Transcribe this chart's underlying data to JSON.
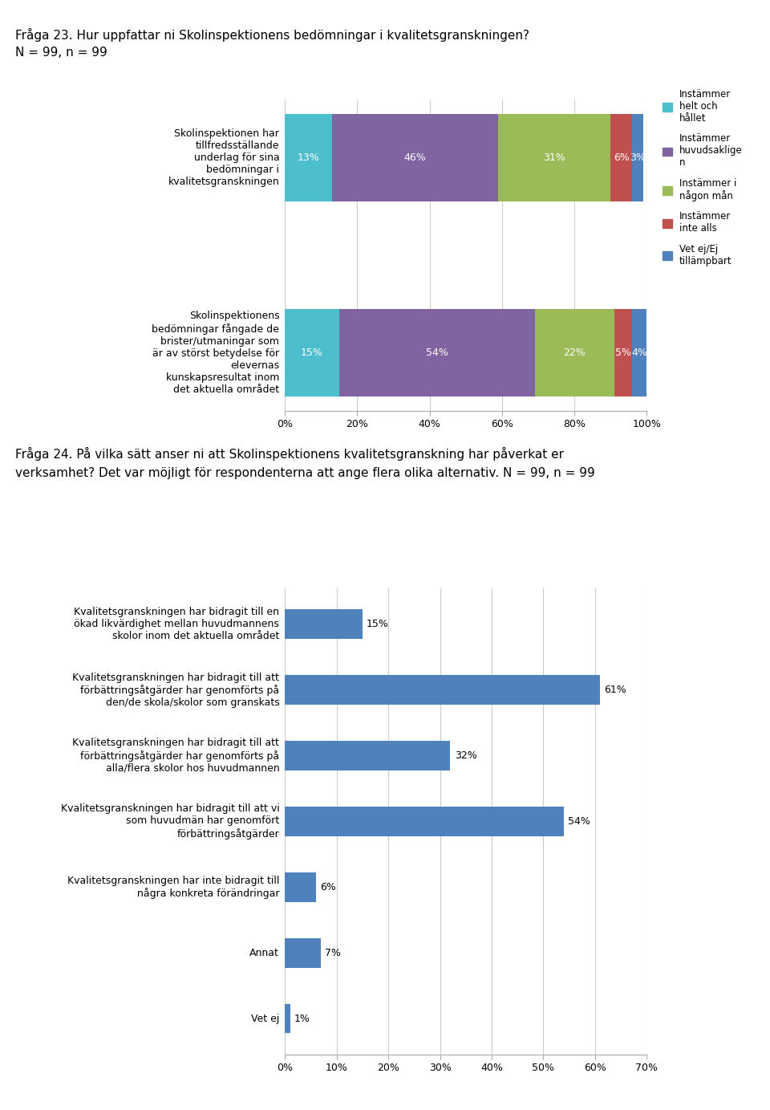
{
  "fig_width": 9.6,
  "fig_height": 13.83,
  "background_color": "#ffffff",
  "q23_title": "Fråga 23. Hur uppfattar ni Skolinspektionens bedömningar i kvalitetsgranskningen?",
  "q23_subtitle": "N = 99, n = 99",
  "q23_categories": [
    "Skolinspektionen har\ntillfredsställande\nunderlag för sina\nbedömningar i\nkvalitetsgranskningen",
    "Skolinspektionens\nbedömningar fångade de\nbrister/utmaningar som\när av störst betydelse för\nelevernas\nkunskapsresultat inom\ndet aktuella området"
  ],
  "q23_data": [
    [
      13,
      46,
      31,
      6,
      3
    ],
    [
      15,
      54,
      22,
      5,
      4
    ]
  ],
  "q23_colors": [
    "#4DBECC",
    "#8064A2",
    "#9BBB59",
    "#C0504D",
    "#4F81BD"
  ],
  "q23_legend_labels": [
    "Instämmer\nhelt och\nhållet",
    "Instämmer\nhuvudsaklige\nn",
    "Instämmer i\nnågon mån",
    "Instämmer\ninte alls",
    "Vet ej/Ej\ntillämpbart"
  ],
  "q24_title_line1": "Fråga 24. På vilka sätt anser ni att Skolinspektionens kvalitetsgranskning har påverkat er",
  "q24_title_line2": "verksamhet? Det var möjligt för respondenterna att ange flera olika alternativ. N = 99, n = 99",
  "q24_categories": [
    "Kvalitetsgranskningen har bidragit till en\nökad likvärdighet mellan huvudmannens\nskolor inom det aktuella området",
    "Kvalitetsgranskningen har bidragit till att\nförbättringsåtgärder har genomförts på\nden/de skola/skolor som granskats",
    "Kvalitetsgranskningen har bidragit till att\nförbättringsåtgärder har genomförts på\nalla/flera skolor hos huvudmannen",
    "Kvalitetsgranskningen har bidragit till att vi\nsom huvudmän har genomfört\nförbättringsåtgärder",
    "Kvalitetsgranskningen har inte bidragit till\nnågra konkreta förändringar",
    "Annat",
    "Vet ej"
  ],
  "q24_values": [
    15,
    61,
    32,
    54,
    6,
    7,
    1
  ],
  "q24_bar_color": "#4F81BD",
  "q24_xlim": [
    0,
    70
  ]
}
